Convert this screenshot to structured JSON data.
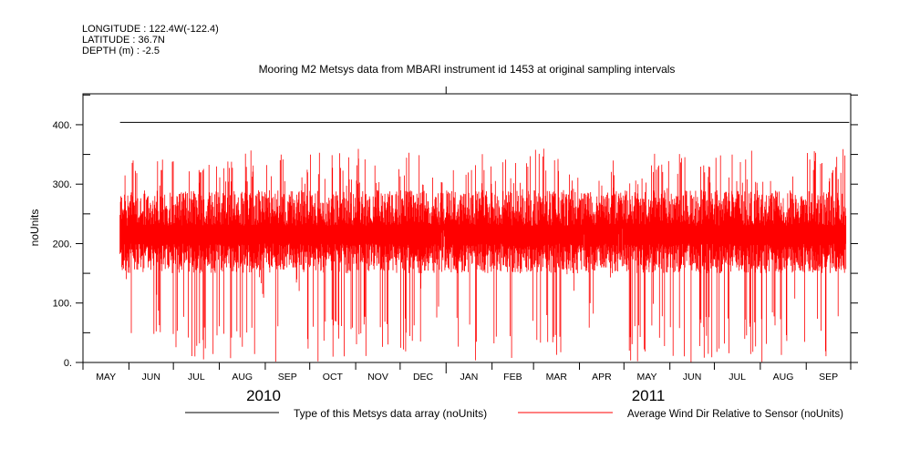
{
  "header": {
    "longitude": "LONGITUDE : 122.4W(-122.4)",
    "latitude": "LATITUDE : 36.7N",
    "depth": "DEPTH (m) : -2.5"
  },
  "chart_data": {
    "type": "line",
    "title": "Mooring M2 Metsys data from MBARI instrument id 1453 at original sampling intervals",
    "ylabel": "noUnits",
    "xlabel": "",
    "ylim": [
      0,
      452
    ],
    "xlim": [
      "2010-05-01",
      "2011-10-01"
    ],
    "y_ticks": [
      0,
      100,
      200,
      300,
      400
    ],
    "y_tick_labels": [
      "0.",
      "100.",
      "200.",
      "300.",
      "400."
    ],
    "x_tick_labels": [
      "MAY",
      "JUN",
      "JUL",
      "AUG",
      "SEP",
      "OCT",
      "NOV",
      "DEC",
      "JAN",
      "FEB",
      "MAR",
      "APR",
      "MAY",
      "JUN",
      "JUL",
      "AUG",
      "SEP"
    ],
    "year_labels": [
      "2010",
      "2011"
    ],
    "grid": false,
    "legend": [
      {
        "name": "Type of this Metsys data array (noUnits)",
        "color": "#000000"
      },
      {
        "name": "Average Wind Dir Relative to Sensor (noUnits)",
        "color": "#ff0000"
      }
    ],
    "series": [
      {
        "name": "Type of this Metsys data array (noUnits)",
        "color": "#000000",
        "start": "2010-05-26",
        "end": "2011-09-30",
        "value": 404
      },
      {
        "name": "Average Wind Dir Relative to Sensor (noUnits)",
        "color": "#ff0000",
        "start": "2010-05-26",
        "window_days": 7,
        "typical_range": [
          170,
          270
        ],
        "weekly_min": [
          120,
          30,
          150,
          40,
          20,
          0,
          0,
          10,
          0,
          0,
          0,
          20,
          0,
          100,
          120,
          0,
          160,
          100,
          0,
          0,
          0,
          10,
          0,
          0,
          20,
          0,
          10,
          0,
          0,
          120,
          40,
          150,
          0,
          10,
          0,
          30,
          0,
          0,
          50,
          0,
          0,
          20,
          0,
          80,
          150,
          40,
          160,
          120,
          150,
          0,
          0,
          20,
          0,
          0,
          10,
          0,
          0,
          0,
          0,
          30,
          0,
          0,
          20,
          0,
          0,
          100,
          0,
          0,
          0,
          0
        ],
        "weekly_max": [
          350,
          355,
          300,
          340,
          355,
          360,
          360,
          355,
          360,
          360,
          360,
          355,
          360,
          330,
          340,
          350,
          320,
          330,
          355,
          360,
          360,
          355,
          360,
          360,
          355,
          360,
          355,
          360,
          350,
          330,
          360,
          310,
          360,
          355,
          360,
          340,
          355,
          360,
          340,
          360,
          360,
          355,
          350,
          330,
          320,
          300,
          310,
          340,
          300,
          360,
          345,
          360,
          350,
          355,
          360,
          360,
          350,
          360,
          360,
          350,
          360,
          360,
          330,
          360,
          355,
          340,
          360,
          360,
          360,
          360
        ]
      }
    ]
  }
}
